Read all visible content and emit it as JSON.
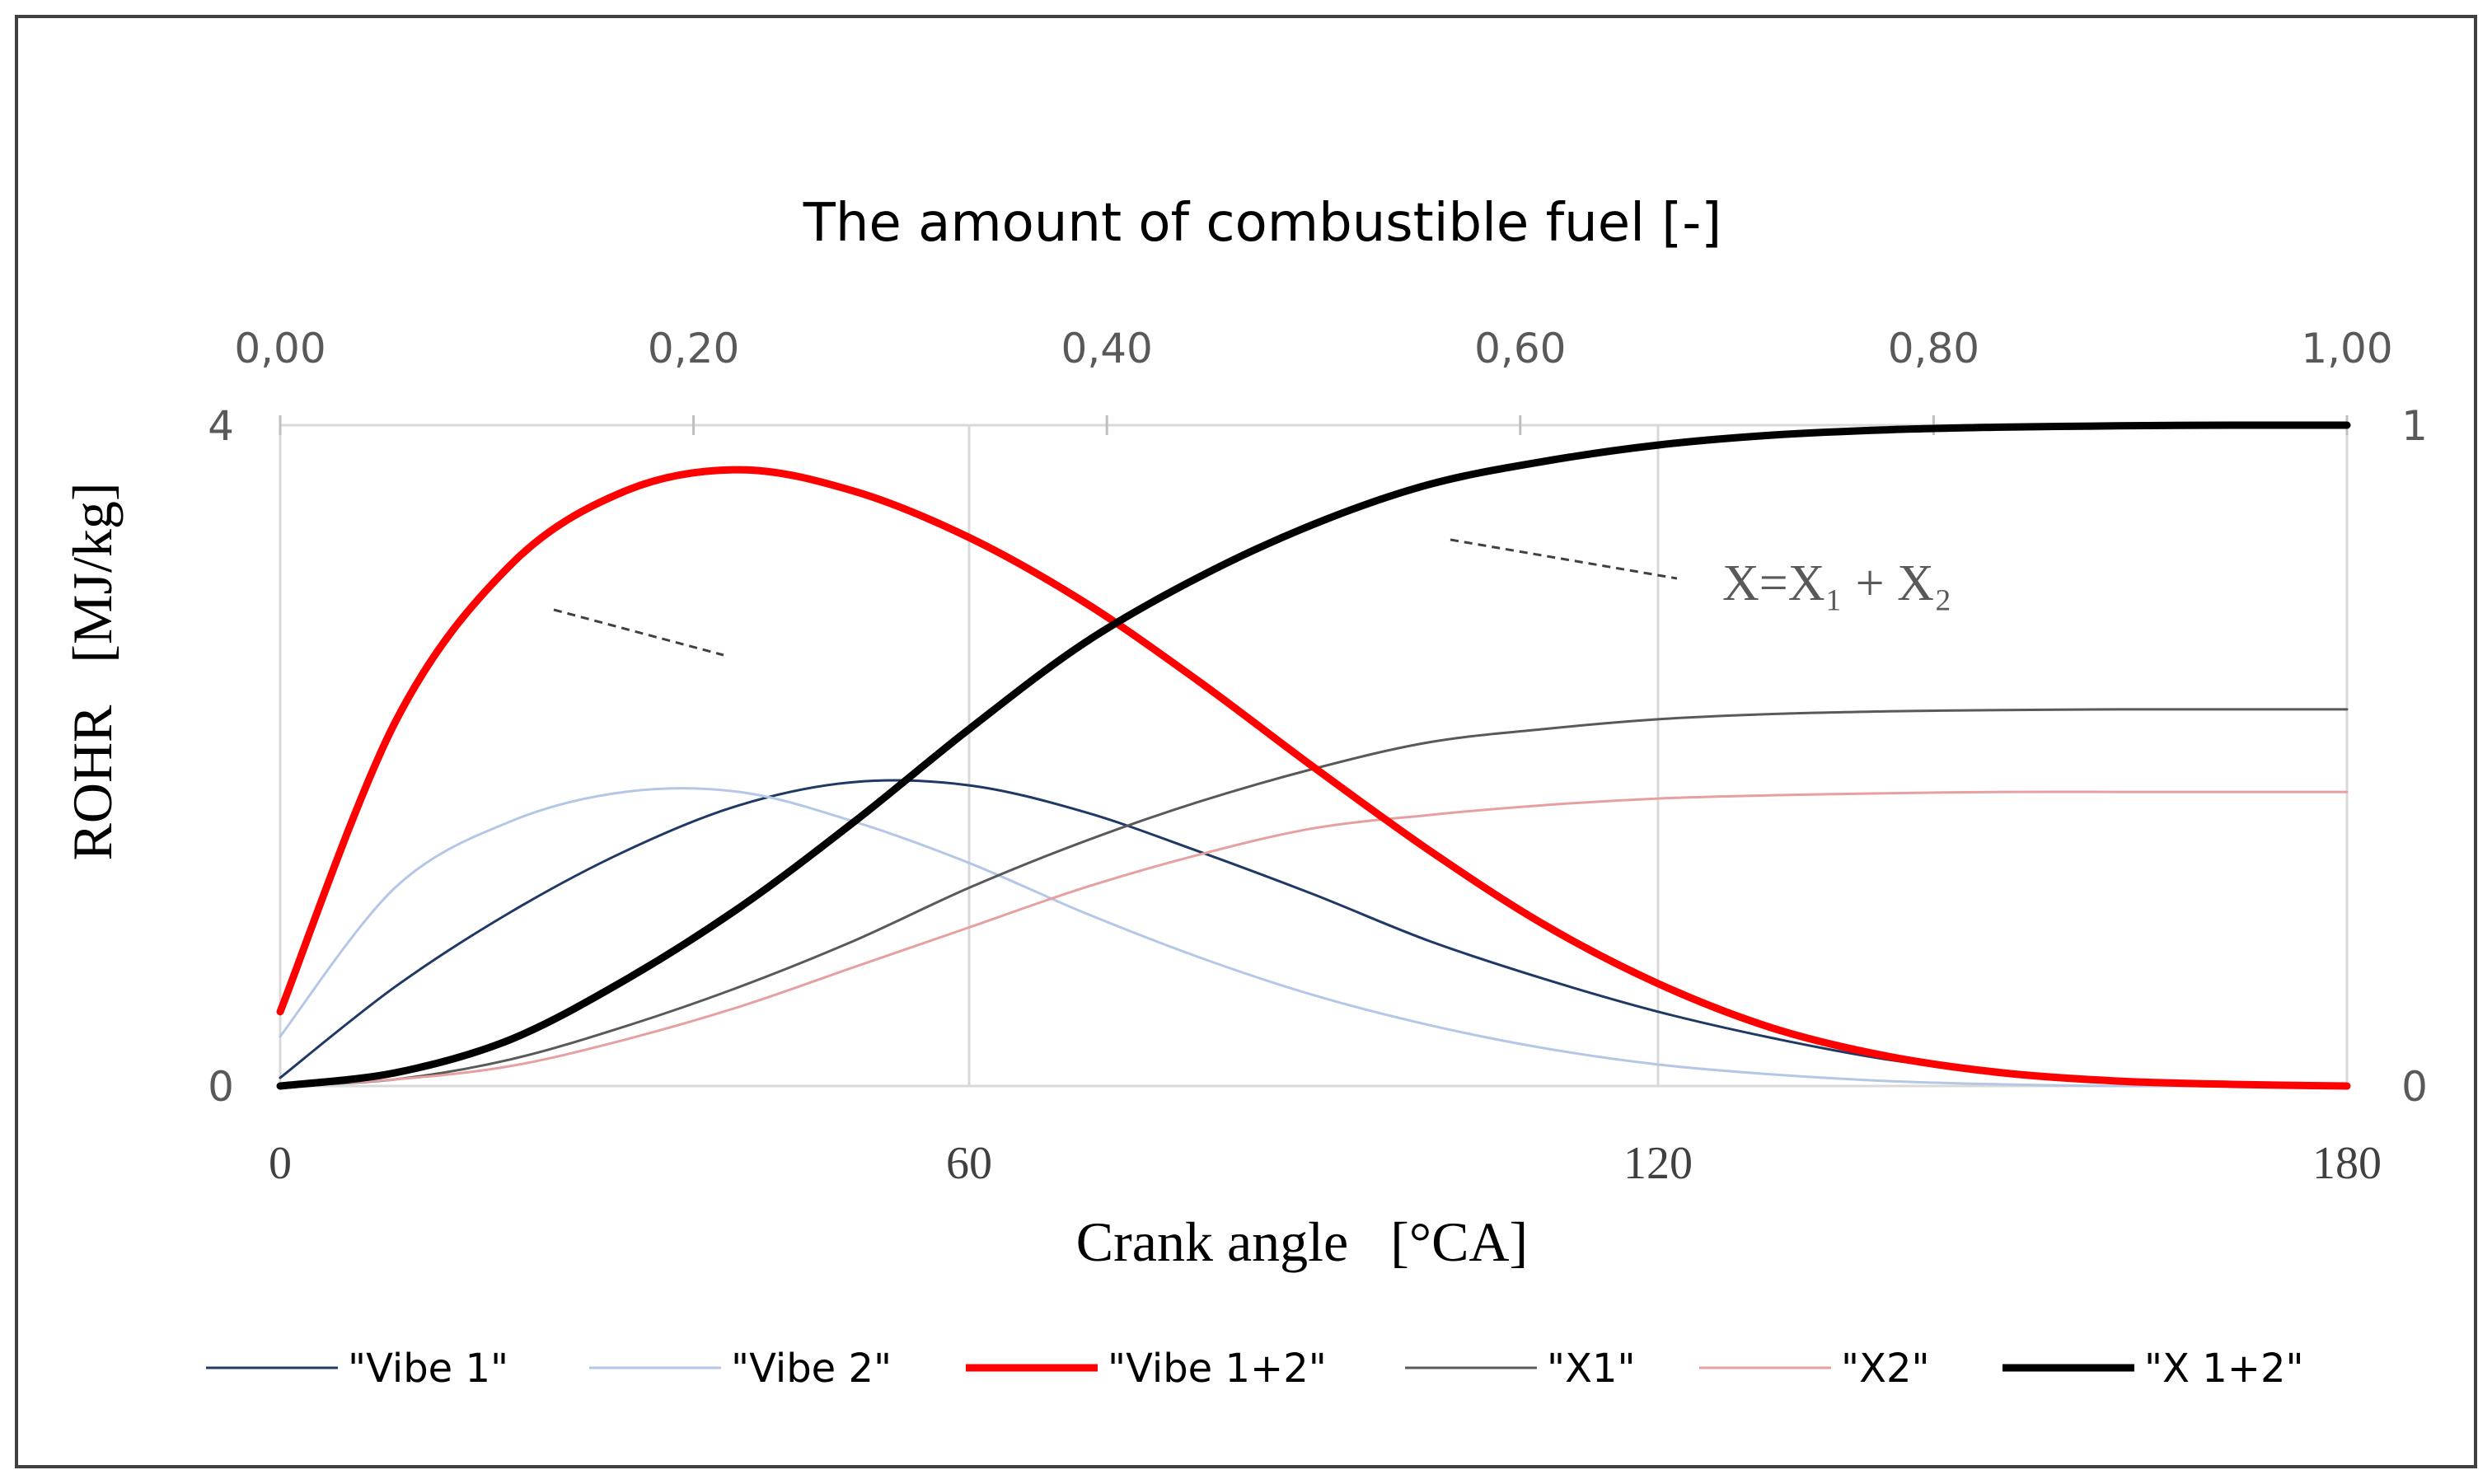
{
  "chart_data": {
    "type": "line",
    "title": "The amount of combustible fuel [-]",
    "xlabel": "Crank angle   [°CA]",
    "ylabel": "ROHR   [MJ/kg]",
    "x_primary": {
      "range": [
        0,
        180
      ],
      "ticks": [
        "0",
        "60",
        "120",
        "180"
      ],
      "tick_values": [
        0,
        60,
        120,
        180
      ]
    },
    "x_secondary": {
      "range": [
        0,
        1
      ],
      "ticks": [
        "0,00",
        "0,20",
        "0,40",
        "0,60",
        "0,80",
        "1,00"
      ],
      "tick_values": [
        0,
        0.2,
        0.4,
        0.6,
        0.8,
        1.0
      ]
    },
    "y_primary": {
      "range": [
        0,
        4
      ],
      "ticks": [
        "0",
        "4"
      ],
      "tick_values": [
        0,
        4
      ]
    },
    "y_secondary": {
      "range": [
        0,
        1
      ],
      "ticks": [
        "0",
        "1"
      ],
      "tick_values": [
        0,
        1
      ]
    },
    "grid": true,
    "x": [
      0,
      10,
      20,
      30,
      40,
      50,
      60,
      70,
      80,
      90,
      100,
      110,
      120,
      130,
      140,
      150,
      160,
      170,
      180
    ],
    "series": [
      {
        "name": "\"Vibe 1\"",
        "axis": "left",
        "color": "#1f3864",
        "width": 3,
        "values": [
          0.05,
          0.6,
          1.05,
          1.42,
          1.7,
          1.84,
          1.82,
          1.66,
          1.42,
          1.16,
          0.88,
          0.65,
          0.45,
          0.29,
          0.16,
          0.08,
          0.04,
          0.01,
          0.0
        ]
      },
      {
        "name": "\"Vibe 2\"",
        "axis": "left",
        "color": "#b4c7e7",
        "width": 3,
        "values": [
          0.3,
          1.2,
          1.6,
          1.78,
          1.78,
          1.6,
          1.35,
          1.05,
          0.78,
          0.55,
          0.37,
          0.23,
          0.13,
          0.07,
          0.03,
          0.01,
          0.0,
          0.0,
          0.0
        ]
      },
      {
        "name": "\"Vibe 1+2\"",
        "axis": "left",
        "color": "#ff0000",
        "width": 9,
        "values": [
          0.45,
          2.2,
          3.15,
          3.6,
          3.73,
          3.6,
          3.32,
          2.93,
          2.45,
          1.93,
          1.43,
          0.98,
          0.62,
          0.35,
          0.18,
          0.08,
          0.03,
          0.01,
          0.0
        ]
      },
      {
        "name": "\"X1\"",
        "axis": "right",
        "color": "#595959",
        "width": 3,
        "values": [
          0.0,
          0.01,
          0.04,
          0.09,
          0.15,
          0.22,
          0.3,
          0.37,
          0.43,
          0.48,
          0.52,
          0.54,
          0.555,
          0.563,
          0.567,
          0.569,
          0.57,
          0.57,
          0.57
        ]
      },
      {
        "name": "\"X2\"",
        "axis": "right",
        "color": "#e6a0a0",
        "width": 3,
        "values": [
          0.0,
          0.01,
          0.03,
          0.07,
          0.12,
          0.18,
          0.24,
          0.3,
          0.35,
          0.39,
          0.41,
          0.425,
          0.435,
          0.44,
          0.443,
          0.445,
          0.445,
          0.445,
          0.445
        ]
      },
      {
        "name": "\"X 1+2\"",
        "axis": "right",
        "color": "#000000",
        "width": 9,
        "values": [
          0.0,
          0.02,
          0.07,
          0.16,
          0.27,
          0.4,
          0.54,
          0.67,
          0.77,
          0.85,
          0.91,
          0.945,
          0.97,
          0.985,
          0.993,
          0.997,
          0.999,
          1.0,
          1.0
        ]
      }
    ],
    "annotations": [
      {
        "text": "X=X₁ + X₂"
      }
    ],
    "legend": "bottom"
  }
}
